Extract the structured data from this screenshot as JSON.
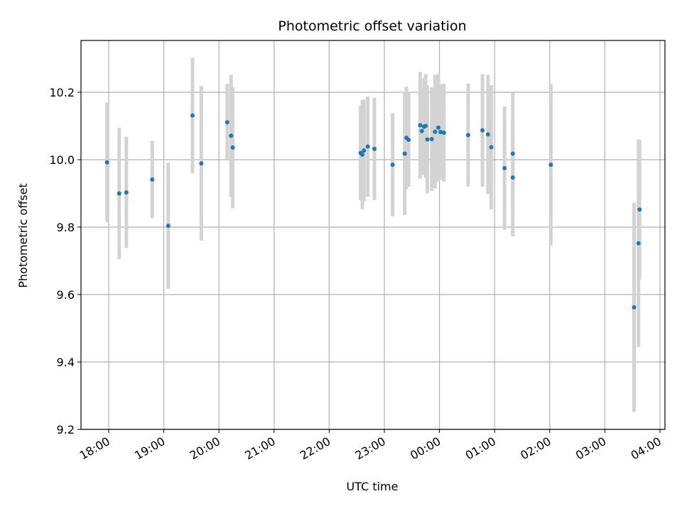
{
  "chart_data": {
    "type": "scatter",
    "title": "Photometric offset variation",
    "xlabel": "UTC time",
    "ylabel": "Photometric offset",
    "x_ticks": [
      "18:00",
      "19:00",
      "20:00",
      "21:00",
      "22:00",
      "23:00",
      "00:00",
      "01:00",
      "02:00",
      "03:00",
      "04:00"
    ],
    "y_ticks": [
      "9.2",
      "9.4",
      "9.6",
      "9.8",
      "10.0",
      "10.2"
    ],
    "xlim_hours": [
      17.5,
      28.1
    ],
    "ylim": [
      9.2,
      10.35
    ],
    "grid": true,
    "marker_color": "#1f77b4",
    "errorbar_color": "#d3d3d3",
    "points": [
      {
        "x_hours": 17.97,
        "y": 9.992,
        "err_low": 9.815,
        "err_high": 10.17
      },
      {
        "x_hours": 18.19,
        "y": 9.9,
        "err_low": 9.705,
        "err_high": 10.095
      },
      {
        "x_hours": 18.32,
        "y": 9.903,
        "err_low": 9.738,
        "err_high": 10.068
      },
      {
        "x_hours": 18.79,
        "y": 9.941,
        "err_low": 9.826,
        "err_high": 10.056
      },
      {
        "x_hours": 19.08,
        "y": 9.804,
        "err_low": 9.617,
        "err_high": 9.991
      },
      {
        "x_hours": 19.52,
        "y": 10.131,
        "err_low": 9.96,
        "err_high": 10.302
      },
      {
        "x_hours": 19.68,
        "y": 9.989,
        "err_low": 9.76,
        "err_high": 10.218
      },
      {
        "x_hours": 20.15,
        "y": 10.111,
        "err_low": 10.002,
        "err_high": 10.225
      },
      {
        "x_hours": 20.22,
        "y": 10.071,
        "err_low": 9.89,
        "err_high": 10.252
      },
      {
        "x_hours": 20.25,
        "y": 10.036,
        "err_low": 9.856,
        "err_high": 10.216
      },
      {
        "x_hours": 22.57,
        "y": 10.02,
        "err_low": 9.88,
        "err_high": 10.16
      },
      {
        "x_hours": 22.6,
        "y": 10.015,
        "err_low": 9.853,
        "err_high": 10.177
      },
      {
        "x_hours": 22.63,
        "y": 10.027,
        "err_low": 9.876,
        "err_high": 10.178
      },
      {
        "x_hours": 22.7,
        "y": 10.039,
        "err_low": 9.89,
        "err_high": 10.188
      },
      {
        "x_hours": 22.82,
        "y": 10.032,
        "err_low": 9.88,
        "err_high": 10.184
      },
      {
        "x_hours": 23.15,
        "y": 9.985,
        "err_low": 9.832,
        "err_high": 10.138
      },
      {
        "x_hours": 23.37,
        "y": 10.018,
        "err_low": 9.836,
        "err_high": 10.2
      },
      {
        "x_hours": 23.4,
        "y": 10.065,
        "err_low": 9.913,
        "err_high": 10.217
      },
      {
        "x_hours": 23.44,
        "y": 10.059,
        "err_low": 9.92,
        "err_high": 10.198
      },
      {
        "x_hours": 23.65,
        "y": 10.102,
        "err_low": 9.944,
        "err_high": 10.26
      },
      {
        "x_hours": 23.68,
        "y": 10.085,
        "err_low": 9.96,
        "err_high": 10.21
      },
      {
        "x_hours": 23.72,
        "y": 10.098,
        "err_low": 9.954,
        "err_high": 10.242
      },
      {
        "x_hours": 23.75,
        "y": 10.1,
        "err_low": 9.946,
        "err_high": 10.254
      },
      {
        "x_hours": 23.78,
        "y": 10.06,
        "err_low": 9.9,
        "err_high": 10.22
      },
      {
        "x_hours": 23.86,
        "y": 10.061,
        "err_low": 9.907,
        "err_high": 10.215
      },
      {
        "x_hours": 23.92,
        "y": 10.083,
        "err_low": 9.915,
        "err_high": 10.251
      },
      {
        "x_hours": 23.98,
        "y": 10.095,
        "err_low": 9.935,
        "err_high": 10.255
      },
      {
        "x_hours": 24.02,
        "y": 10.082,
        "err_low": 9.94,
        "err_high": 10.224
      },
      {
        "x_hours": 24.08,
        "y": 10.08,
        "err_low": 9.935,
        "err_high": 10.225
      },
      {
        "x_hours": 24.52,
        "y": 10.073,
        "err_low": 9.92,
        "err_high": 10.226
      },
      {
        "x_hours": 24.78,
        "y": 10.087,
        "err_low": 9.92,
        "err_high": 10.254
      },
      {
        "x_hours": 24.88,
        "y": 10.075,
        "err_low": 9.898,
        "err_high": 10.252
      },
      {
        "x_hours": 24.94,
        "y": 10.037,
        "err_low": 9.853,
        "err_high": 10.221
      },
      {
        "x_hours": 25.18,
        "y": 9.975,
        "err_low": 9.792,
        "err_high": 10.158
      },
      {
        "x_hours": 25.33,
        "y": 10.018,
        "err_low": 9.838,
        "err_high": 10.198
      },
      {
        "x_hours": 25.33,
        "y": 9.947,
        "err_low": 9.773,
        "err_high": 10.121
      },
      {
        "x_hours": 26.02,
        "y": 9.985,
        "err_low": 9.745,
        "err_high": 10.225
      },
      {
        "x_hours": 27.53,
        "y": 9.562,
        "err_low": 9.252,
        "err_high": 9.872
      },
      {
        "x_hours": 27.61,
        "y": 9.752,
        "err_low": 9.444,
        "err_high": 10.06
      },
      {
        "x_hours": 27.63,
        "y": 9.852,
        "err_low": 9.645,
        "err_high": 10.059
      }
    ]
  }
}
